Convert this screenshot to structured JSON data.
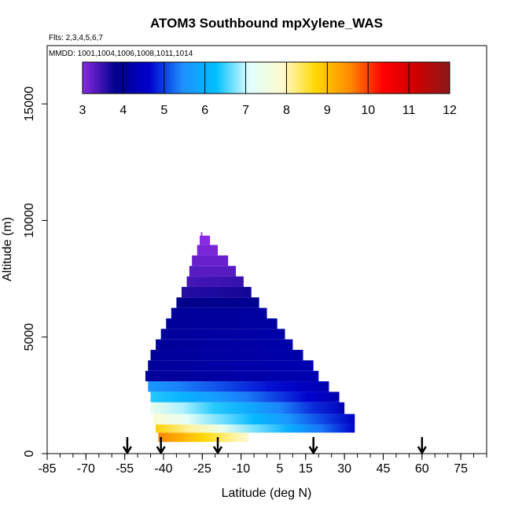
{
  "chart_data": {
    "type": "heatmap",
    "title": "ATOM3 Southbound mpXylene_WAS",
    "subtitle": "Flts: 2,3,4,5,6,7",
    "annotation": "MMDD: 1001,1004,1006,1008,1011,1014",
    "xlabel": "Latitude (deg N)",
    "ylabel": "Altitude (m)",
    "xlim": [
      -85,
      85
    ],
    "ylim": [
      0,
      17500
    ],
    "x_ticks": [
      -85,
      -70,
      -55,
      -40,
      -25,
      -10,
      5,
      15,
      30,
      45,
      60,
      75
    ],
    "y_ticks": [
      0,
      5000,
      10000,
      15000
    ],
    "colorbar": {
      "min": 3,
      "max": 12,
      "ticks": [
        3,
        4,
        5,
        6,
        7,
        8,
        9,
        10,
        11,
        12
      ],
      "colors": [
        "#8a2be2",
        "#00008b",
        "#0000cd",
        "#1e90ff",
        "#00bfff",
        "#e0ffff",
        "#fffacd",
        "#ffd700",
        "#ff8c00",
        "#ff0000",
        "#cd0000",
        "#8b1a1a"
      ]
    },
    "flight_markers_lat": [
      -54,
      -41,
      -19,
      18,
      60
    ],
    "layers": [
      {
        "alt_lo": 500,
        "alt_hi": 900,
        "lat_start": -42,
        "lat_end": -7,
        "val_start": 9.6,
        "val_end": 7.8
      },
      {
        "alt_lo": 900,
        "alt_hi": 1250,
        "lat_start": -43,
        "lat_end": 34,
        "val_start": 8.8,
        "val_end": 4.6
      },
      {
        "alt_lo": 1250,
        "alt_hi": 1700,
        "lat_start": -44,
        "lat_end": 34,
        "val_start": 7.8,
        "val_end": 4.5
      },
      {
        "alt_lo": 1700,
        "alt_hi": 2200,
        "lat_start": -45,
        "lat_end": 30,
        "val_start": 7.4,
        "val_end": 4.4
      },
      {
        "alt_lo": 2200,
        "alt_hi": 2650,
        "lat_start": -45,
        "lat_end": 28,
        "val_start": 6.4,
        "val_end": 4.3
      },
      {
        "alt_lo": 2650,
        "alt_hi": 3100,
        "lat_start": -46,
        "lat_end": 24,
        "val_start": 5.6,
        "val_end": 4.3
      },
      {
        "alt_lo": 3100,
        "alt_hi": 3550,
        "lat_start": -47,
        "lat_end": 20,
        "val_start": 4.0,
        "val_end": 4.3
      },
      {
        "alt_lo": 3550,
        "alt_hi": 4000,
        "lat_start": -46,
        "lat_end": 18,
        "val_start": 4.0,
        "val_end": 4.3
      },
      {
        "alt_lo": 4000,
        "alt_hi": 4450,
        "lat_start": -45,
        "lat_end": 14,
        "val_start": 4.0,
        "val_end": 4.2
      },
      {
        "alt_lo": 4450,
        "alt_hi": 4900,
        "lat_start": -43,
        "lat_end": 10,
        "val_start": 4.0,
        "val_end": 4.2
      },
      {
        "alt_lo": 4900,
        "alt_hi": 5350,
        "lat_start": -41,
        "lat_end": 7,
        "val_start": 4.0,
        "val_end": 4.2
      },
      {
        "alt_lo": 5350,
        "alt_hi": 5800,
        "lat_start": -39,
        "lat_end": 4,
        "val_start": 4.0,
        "val_end": 4.1
      },
      {
        "alt_lo": 5800,
        "alt_hi": 6250,
        "lat_start": -37,
        "lat_end": 0,
        "val_start": 4.0,
        "val_end": 4.1
      },
      {
        "alt_lo": 6250,
        "alt_hi": 6700,
        "lat_start": -35,
        "lat_end": -3,
        "val_start": 3.8,
        "val_end": 3.9
      },
      {
        "alt_lo": 6700,
        "alt_hi": 7150,
        "lat_start": -33,
        "lat_end": -6,
        "val_start": 3.6,
        "val_end": 3.7
      },
      {
        "alt_lo": 7150,
        "alt_hi": 7600,
        "lat_start": -31,
        "lat_end": -9,
        "val_start": 3.4,
        "val_end": 3.5
      },
      {
        "alt_lo": 7600,
        "alt_hi": 8050,
        "lat_start": -30,
        "lat_end": -12,
        "val_start": 3.3,
        "val_end": 3.3
      },
      {
        "alt_lo": 8050,
        "alt_hi": 8500,
        "lat_start": -29,
        "lat_end": -15,
        "val_start": 3.2,
        "val_end": 3.2
      },
      {
        "alt_lo": 8500,
        "alt_hi": 8950,
        "lat_start": -27,
        "lat_end": -19,
        "val_start": 3.1,
        "val_end": 3.1
      },
      {
        "alt_lo": 8950,
        "alt_hi": 9350,
        "lat_start": -26,
        "lat_end": -22,
        "val_start": 3.0,
        "val_end": 3.0
      },
      {
        "alt_lo": 9350,
        "alt_hi": 9500,
        "lat_start": -25.5,
        "lat_end": -25,
        "val_start": 3.0,
        "val_end": 3.0
      }
    ]
  }
}
